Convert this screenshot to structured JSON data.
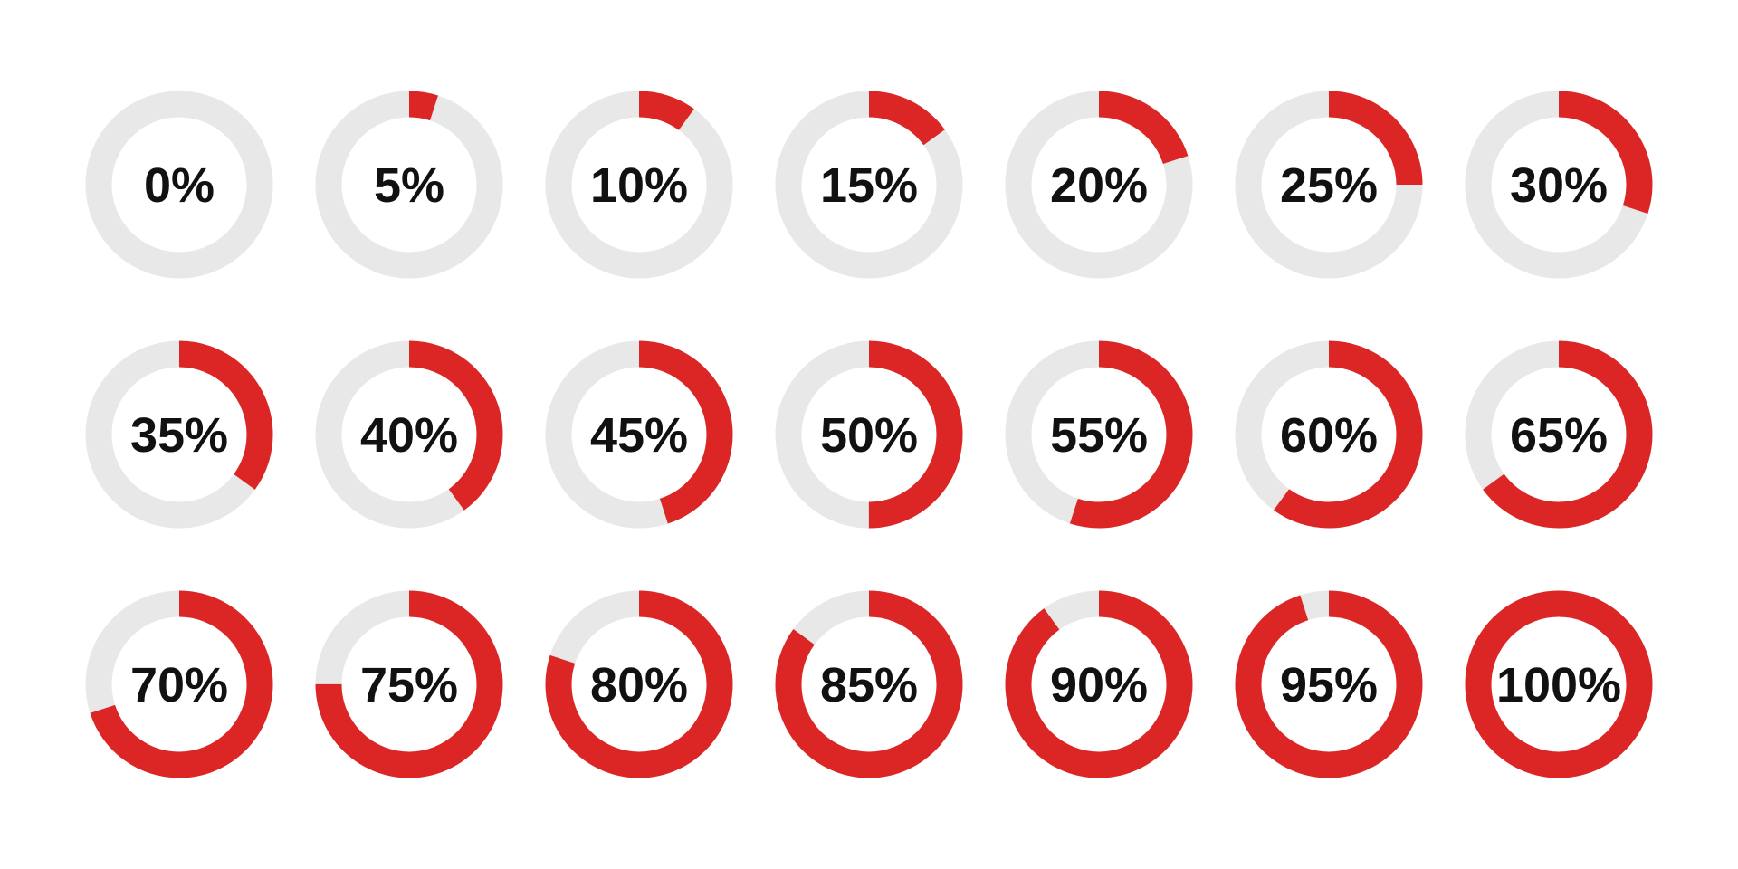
{
  "colors": {
    "progress": "#dc2626",
    "track": "#e8e8e8",
    "text": "#111111",
    "background": "#ffffff"
  },
  "rings": [
    {
      "label": "0%",
      "value": 0
    },
    {
      "label": "5%",
      "value": 5
    },
    {
      "label": "10%",
      "value": 10
    },
    {
      "label": "15%",
      "value": 15
    },
    {
      "label": "20%",
      "value": 20
    },
    {
      "label": "25%",
      "value": 25
    },
    {
      "label": "30%",
      "value": 30
    },
    {
      "label": "35%",
      "value": 35
    },
    {
      "label": "40%",
      "value": 40
    },
    {
      "label": "45%",
      "value": 45
    },
    {
      "label": "50%",
      "value": 50
    },
    {
      "label": "55%",
      "value": 55
    },
    {
      "label": "60%",
      "value": 60
    },
    {
      "label": "65%",
      "value": 65
    },
    {
      "label": "70%",
      "value": 70
    },
    {
      "label": "75%",
      "value": 75
    },
    {
      "label": "80%",
      "value": 80
    },
    {
      "label": "85%",
      "value": 85
    },
    {
      "label": "90%",
      "value": 90
    },
    {
      "label": "95%",
      "value": 95
    },
    {
      "label": "100%",
      "value": 100
    }
  ]
}
